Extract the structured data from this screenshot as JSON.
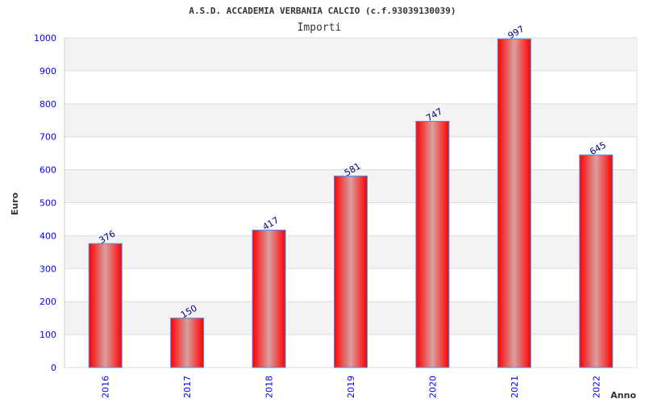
{
  "chart_data": {
    "type": "bar",
    "title": "A.S.D. ACCADEMIA VERBANIA CALCIO (c.f.93039130039)",
    "subtitle": "Importi",
    "xlabel": "Anno",
    "ylabel": "Euro",
    "categories": [
      "2016",
      "2017",
      "2018",
      "2019",
      "2020",
      "2021",
      "2022"
    ],
    "values": [
      376,
      150,
      417,
      581,
      747,
      997,
      645
    ],
    "data_labels": [
      "376",
      "150",
      "417",
      "581",
      "747",
      "997",
      "645"
    ],
    "ylim": [
      0,
      1000
    ],
    "yticks": [
      "0",
      "100",
      "200",
      "300",
      "400",
      "500",
      "600",
      "700",
      "800",
      "900",
      "1000"
    ],
    "grid": true,
    "colors": {
      "bar_edge": "#ff0000",
      "bar_center": "#d9a0a0",
      "bar_border": "#3399ff",
      "band": "#f3f3f3",
      "tick": "#0000ff",
      "data_label": "#000080"
    }
  }
}
